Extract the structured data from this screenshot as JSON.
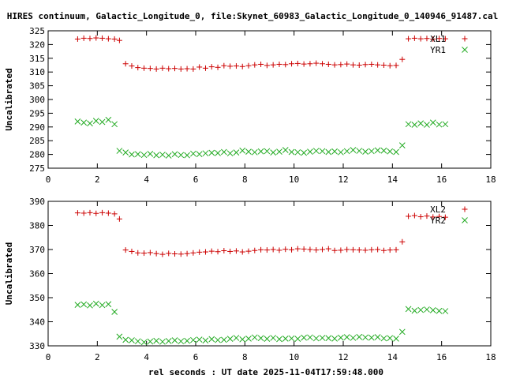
{
  "title": "HIRES continuum, Galactic_Longitude_0, file:Skynet_60983_Galactic_Longitude_0_140946_91487.cal",
  "xlabel": "rel seconds : UT date 2025-11-04T17:59:48.000",
  "colors": {
    "red": "#cc0000",
    "green": "#22aa22",
    "axis": "#000000"
  },
  "chart_data": [
    {
      "type": "scatter",
      "ylabel": "Uncalibrated",
      "xlim": [
        0,
        18
      ],
      "ylim": [
        275,
        325
      ],
      "xticks": [
        0,
        2,
        4,
        6,
        8,
        10,
        12,
        14,
        16,
        18
      ],
      "yticks": [
        275,
        280,
        285,
        290,
        295,
        300,
        305,
        310,
        315,
        320,
        325
      ],
      "series": [
        {
          "name": "XL1",
          "marker": "+",
          "color": "#cc0000",
          "x": [
            1.2,
            1.45,
            1.7,
            1.95,
            2.2,
            2.45,
            2.7,
            2.9,
            3.15,
            3.4,
            3.65,
            3.9,
            4.15,
            4.4,
            4.65,
            4.9,
            5.15,
            5.4,
            5.65,
            5.9,
            6.15,
            6.4,
            6.65,
            6.9,
            7.15,
            7.4,
            7.65,
            7.9,
            8.15,
            8.4,
            8.65,
            8.9,
            9.15,
            9.4,
            9.65,
            9.9,
            10.15,
            10.4,
            10.65,
            10.9,
            11.15,
            11.4,
            11.65,
            11.9,
            12.15,
            12.4,
            12.65,
            12.9,
            13.15,
            13.4,
            13.65,
            13.9,
            14.15,
            14.4,
            14.65,
            14.9,
            15.15,
            15.4,
            15.65,
            15.9,
            16.15
          ],
          "y": [
            322,
            322.3,
            322.2,
            322.4,
            322.3,
            322.1,
            322,
            321.5,
            313,
            312.2,
            311.6,
            311.4,
            311.3,
            311.1,
            311.4,
            311.2,
            311.3,
            311.1,
            311.2,
            311.1,
            311.8,
            311.4,
            311.9,
            311.7,
            312.3,
            312.1,
            312.2,
            312,
            312.3,
            312.6,
            312.8,
            312.4,
            312.6,
            312.8,
            312.7,
            313,
            313.1,
            312.9,
            313,
            313.2,
            313,
            312.8,
            312.6,
            312.7,
            312.9,
            312.6,
            312.5,
            312.7,
            312.8,
            312.6,
            312.5,
            312.3,
            312.4,
            314.6,
            322.1,
            322.3,
            322.1,
            322.2,
            322,
            322.2,
            322.1
          ]
        },
        {
          "name": "YR1",
          "marker": "x",
          "color": "#22aa22",
          "x": [
            1.2,
            1.45,
            1.7,
            1.95,
            2.2,
            2.45,
            2.7,
            2.9,
            3.15,
            3.4,
            3.65,
            3.9,
            4.15,
            4.4,
            4.65,
            4.9,
            5.15,
            5.4,
            5.65,
            5.9,
            6.15,
            6.4,
            6.65,
            6.9,
            7.15,
            7.4,
            7.65,
            7.9,
            8.15,
            8.4,
            8.65,
            8.9,
            9.15,
            9.4,
            9.65,
            9.9,
            10.15,
            10.4,
            10.65,
            10.9,
            11.15,
            11.4,
            11.65,
            11.9,
            12.15,
            12.4,
            12.65,
            12.9,
            13.15,
            13.4,
            13.65,
            13.9,
            14.15,
            14.4,
            14.65,
            14.9,
            15.15,
            15.4,
            15.65,
            15.9,
            16.15
          ],
          "y": [
            292,
            291.6,
            291.3,
            292.2,
            291.8,
            292.6,
            291,
            281.3,
            280.7,
            280,
            280.1,
            279.8,
            280.2,
            279.7,
            279.9,
            279.6,
            280.1,
            279.8,
            279.7,
            280.3,
            280.1,
            280.4,
            280.6,
            280.5,
            280.9,
            280.4,
            280.7,
            281.4,
            281,
            280.8,
            281.1,
            281.2,
            280.7,
            281,
            281.6,
            280.9,
            280.8,
            280.6,
            281,
            281.3,
            281.2,
            280.9,
            281.1,
            280.8,
            281.2,
            281.6,
            281.3,
            281,
            281.2,
            281.5,
            281.4,
            281.1,
            280.9,
            283.3,
            291,
            290.8,
            291.3,
            290.8,
            291.6,
            290.9,
            291
          ]
        }
      ]
    },
    {
      "type": "scatter",
      "ylabel": "Uncalibrated",
      "xlim": [
        0,
        18
      ],
      "ylim": [
        330,
        390
      ],
      "xticks": [
        0,
        2,
        4,
        6,
        8,
        10,
        12,
        14,
        16,
        18
      ],
      "yticks": [
        330,
        340,
        350,
        360,
        370,
        380,
        390
      ],
      "series": [
        {
          "name": "XL2",
          "marker": "+",
          "color": "#cc0000",
          "x": [
            1.2,
            1.45,
            1.7,
            1.95,
            2.2,
            2.45,
            2.7,
            2.9,
            3.15,
            3.4,
            3.65,
            3.9,
            4.15,
            4.4,
            4.65,
            4.9,
            5.15,
            5.4,
            5.65,
            5.9,
            6.15,
            6.4,
            6.65,
            6.9,
            7.15,
            7.4,
            7.65,
            7.9,
            8.15,
            8.4,
            8.65,
            8.9,
            9.15,
            9.4,
            9.65,
            9.9,
            10.15,
            10.4,
            10.65,
            10.9,
            11.15,
            11.4,
            11.65,
            11.9,
            12.15,
            12.4,
            12.65,
            12.9,
            13.15,
            13.4,
            13.65,
            13.9,
            14.15,
            14.4,
            14.65,
            14.9,
            15.15,
            15.4,
            15.65,
            15.9,
            16.15
          ],
          "y": [
            385.2,
            385.1,
            385.3,
            385,
            385.3,
            385.1,
            384.8,
            382.7,
            369.8,
            369.2,
            368.6,
            368.5,
            368.7,
            368.3,
            368,
            368.4,
            368.2,
            368.1,
            368.3,
            368.6,
            368.9,
            369,
            369.3,
            369.1,
            369.5,
            369.2,
            369.4,
            369,
            369.3,
            369.6,
            369.9,
            369.8,
            370,
            369.7,
            370.1,
            369.9,
            370.3,
            370.2,
            370,
            369.8,
            370,
            370.3,
            369.6,
            369.7,
            370,
            369.9,
            369.8,
            369.7,
            369.9,
            370,
            369.6,
            369.8,
            369.9,
            373.2,
            383.8,
            384.1,
            383.6,
            383.9,
            383.5,
            383.7,
            383.4
          ]
        },
        {
          "name": "YR2",
          "marker": "x",
          "color": "#22aa22",
          "x": [
            1.2,
            1.45,
            1.7,
            1.95,
            2.2,
            2.45,
            2.7,
            2.9,
            3.15,
            3.4,
            3.65,
            3.9,
            4.15,
            4.4,
            4.65,
            4.9,
            5.15,
            5.4,
            5.65,
            5.9,
            6.15,
            6.4,
            6.65,
            6.9,
            7.15,
            7.4,
            7.65,
            7.9,
            8.15,
            8.4,
            8.65,
            8.9,
            9.15,
            9.4,
            9.65,
            9.9,
            10.15,
            10.4,
            10.65,
            10.9,
            11.15,
            11.4,
            11.65,
            11.9,
            12.15,
            12.4,
            12.65,
            12.9,
            13.15,
            13.4,
            13.65,
            13.9,
            14.15,
            14.4,
            14.65,
            14.9,
            15.15,
            15.4,
            15.65,
            15.9,
            16.15
          ],
          "y": [
            347,
            347.2,
            346.8,
            347.5,
            346.9,
            347.3,
            344.1,
            333.8,
            332.5,
            332.3,
            331.9,
            331.5,
            331.8,
            332.1,
            331.7,
            332,
            332.3,
            331.9,
            332.1,
            332.4,
            332.6,
            332.2,
            332.8,
            332.4,
            332.5,
            332.9,
            333.3,
            332.7,
            333,
            333.5,
            333.2,
            332.9,
            333.3,
            332.8,
            333,
            333.1,
            332.9,
            333.4,
            333.5,
            333.1,
            333.3,
            333.2,
            333,
            333.4,
            333.6,
            333.3,
            333.7,
            333.5,
            333.4,
            333.6,
            333.1,
            333.2,
            333,
            335.8,
            345.3,
            344.6,
            344.9,
            345.1,
            344.8,
            344.5,
            344.4
          ]
        }
      ]
    }
  ]
}
